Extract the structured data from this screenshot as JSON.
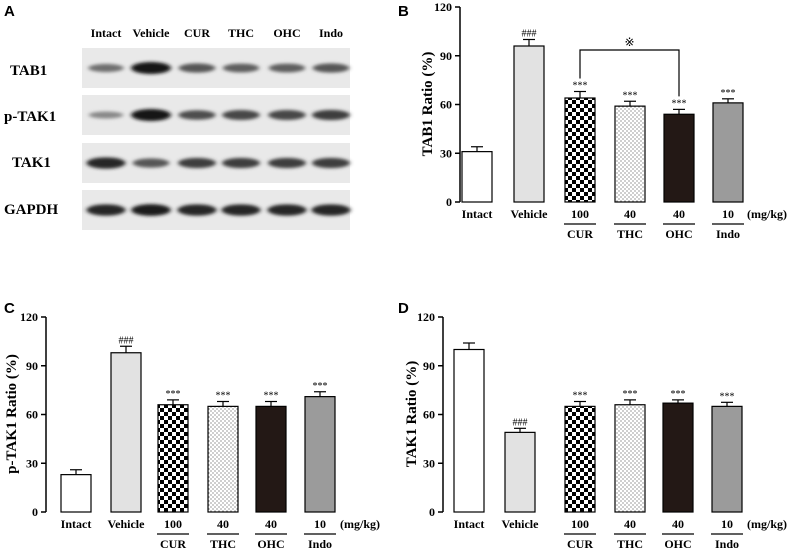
{
  "figure": {
    "groups": [
      "Intact",
      "Vehicle",
      "CUR",
      "THC",
      "OHC",
      "Indo"
    ],
    "doses": [
      "100",
      "40",
      "40",
      "10"
    ],
    "unit": "(mg/kg)",
    "cross_mark": "※",
    "colors": {
      "intact": "#ffffff",
      "vehicle": "#e2e2e2",
      "thc": "#ffffff",
      "ohc": "#231815",
      "indo": "#9b9b9b",
      "axis": "#000000"
    }
  },
  "blot": {
    "letter": "A",
    "lanes": [
      "Intact",
      "Vehicle",
      "CUR",
      "THC",
      "OHC",
      "Indo"
    ],
    "rows": [
      {
        "label": "TAB1",
        "intensity": [
          0.45,
          1.0,
          0.6,
          0.55,
          0.55,
          0.6
        ]
      },
      {
        "label": "p-TAK1",
        "intensity": [
          0.3,
          1.0,
          0.65,
          0.7,
          0.7,
          0.75
        ]
      },
      {
        "label": "TAK1",
        "intensity": [
          0.9,
          0.6,
          0.75,
          0.75,
          0.75,
          0.75
        ]
      },
      {
        "label": "GAPDH",
        "intensity": [
          0.9,
          0.95,
          0.9,
          0.9,
          0.9,
          0.9
        ]
      }
    ]
  },
  "chart_data": [
    {
      "letter": "B",
      "type": "bar",
      "ylabel": "TAB1 Ratio (%)",
      "ylim": [
        0,
        120
      ],
      "yticks": [
        "0",
        "30",
        "60",
        "90",
        "120"
      ],
      "categories": [
        "Intact",
        "Vehicle",
        "CUR",
        "THC",
        "OHC",
        "Indo"
      ],
      "values": [
        31,
        96,
        64,
        59,
        54,
        61
      ],
      "errors": [
        3,
        4,
        4,
        3,
        3,
        2.5
      ],
      "annotations": [
        "",
        "###",
        "***",
        "***",
        "***",
        "***"
      ],
      "comparison": {
        "from": "CUR",
        "to": "OHC",
        "mark": "※"
      }
    },
    {
      "letter": "C",
      "type": "bar",
      "ylabel": "p-TAK1 Ratio (%)",
      "ylim": [
        0,
        120
      ],
      "yticks": [
        "0",
        "30",
        "60",
        "90",
        "120"
      ],
      "categories": [
        "Intact",
        "Vehicle",
        "CUR",
        "THC",
        "OHC",
        "Indo"
      ],
      "values": [
        23,
        98,
        66,
        65,
        65,
        71
      ],
      "errors": [
        3,
        4,
        3,
        3,
        3,
        3
      ],
      "annotations": [
        "",
        "###",
        "***",
        "***",
        "***",
        "***"
      ]
    },
    {
      "letter": "D",
      "type": "bar",
      "ylabel": "TAK1 Ratio (%)",
      "ylim": [
        0,
        120
      ],
      "yticks": [
        "0",
        "30",
        "60",
        "90",
        "120"
      ],
      "categories": [
        "Intact",
        "Vehicle",
        "CUR",
        "THC",
        "OHC",
        "Indo"
      ],
      "values": [
        100,
        49,
        65,
        66,
        67,
        65
      ],
      "errors": [
        4,
        2.5,
        3,
        3,
        2,
        2.5
      ],
      "annotations": [
        "",
        "###",
        "***",
        "***",
        "***",
        "***"
      ]
    }
  ]
}
